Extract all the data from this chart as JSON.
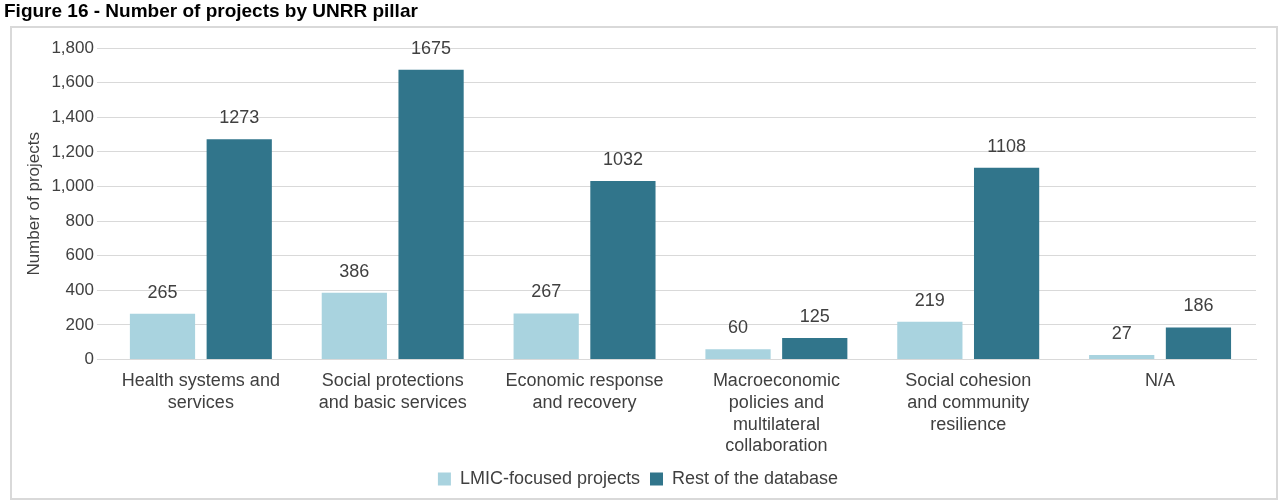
{
  "chart_data": {
    "type": "bar",
    "title": "Figure 16 - Number of projects by UNRR pillar",
    "ylabel": "Number of projects",
    "categories": [
      "Health systems and services",
      "Social protections and basic services",
      "Economic response and recovery",
      "Macroeconomic policies and multilateral collaboration",
      "Social cohesion and community resilience",
      "N/A"
    ],
    "series": [
      {
        "name": "LMIC-focused projects",
        "color": "#a9d3df",
        "values": [
          265,
          386,
          267,
          60,
          219,
          27
        ]
      },
      {
        "name": "Rest of the database",
        "color": "#31758b",
        "values": [
          1273,
          1675,
          1032,
          125,
          1108,
          186
        ]
      }
    ],
    "ylim": [
      0,
      1800
    ],
    "yticks": [
      {
        "value": 0,
        "label": "0"
      },
      {
        "value": 200,
        "label": "200"
      },
      {
        "value": 400,
        "label": "400"
      },
      {
        "value": 600,
        "label": "600"
      },
      {
        "value": 800,
        "label": "800"
      },
      {
        "value": 1000,
        "label": "1,000"
      },
      {
        "value": 1200,
        "label": "1,200"
      },
      {
        "value": 1400,
        "label": "1,400"
      },
      {
        "value": 1600,
        "label": "1,600"
      },
      {
        "value": 1800,
        "label": "1,800"
      }
    ],
    "grid": "y",
    "legend": "bottom",
    "data_labels": true
  }
}
